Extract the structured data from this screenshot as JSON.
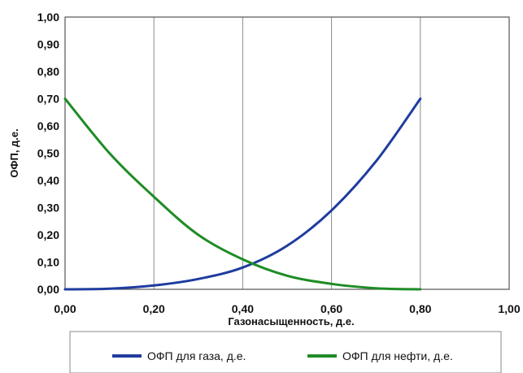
{
  "chart_data": {
    "type": "line",
    "xlabel": "Газонасыщенность, д.е.",
    "ylabel": "ОФП, д.е.",
    "xlim": [
      0,
      1
    ],
    "ylim": [
      0,
      1
    ],
    "x_ticks": [
      "0,00",
      "0,20",
      "0,40",
      "0,60",
      "0,80",
      "1,00"
    ],
    "y_ticks": [
      "0,00",
      "0,10",
      "0,20",
      "0,30",
      "0,40",
      "0,50",
      "0,60",
      "0,70",
      "0,80",
      "0,90",
      "1,00"
    ],
    "grid": "vertical",
    "legend_position": "bottom",
    "series": [
      {
        "name": "ОФП для газа, д.е.",
        "color": "#1f3c9e",
        "x": [
          0.0,
          0.1,
          0.2,
          0.3,
          0.4,
          0.5,
          0.6,
          0.7,
          0.8
        ],
        "y": [
          0.0,
          0.002,
          0.014,
          0.038,
          0.08,
          0.16,
          0.29,
          0.47,
          0.7
        ]
      },
      {
        "name": "ОФП для нефти, д.е.",
        "color": "#1e8c25",
        "x": [
          0.0,
          0.1,
          0.2,
          0.3,
          0.4,
          0.5,
          0.6,
          0.7,
          0.8
        ],
        "y": [
          0.7,
          0.5,
          0.34,
          0.2,
          0.11,
          0.05,
          0.02,
          0.004,
          0.0
        ]
      }
    ]
  }
}
